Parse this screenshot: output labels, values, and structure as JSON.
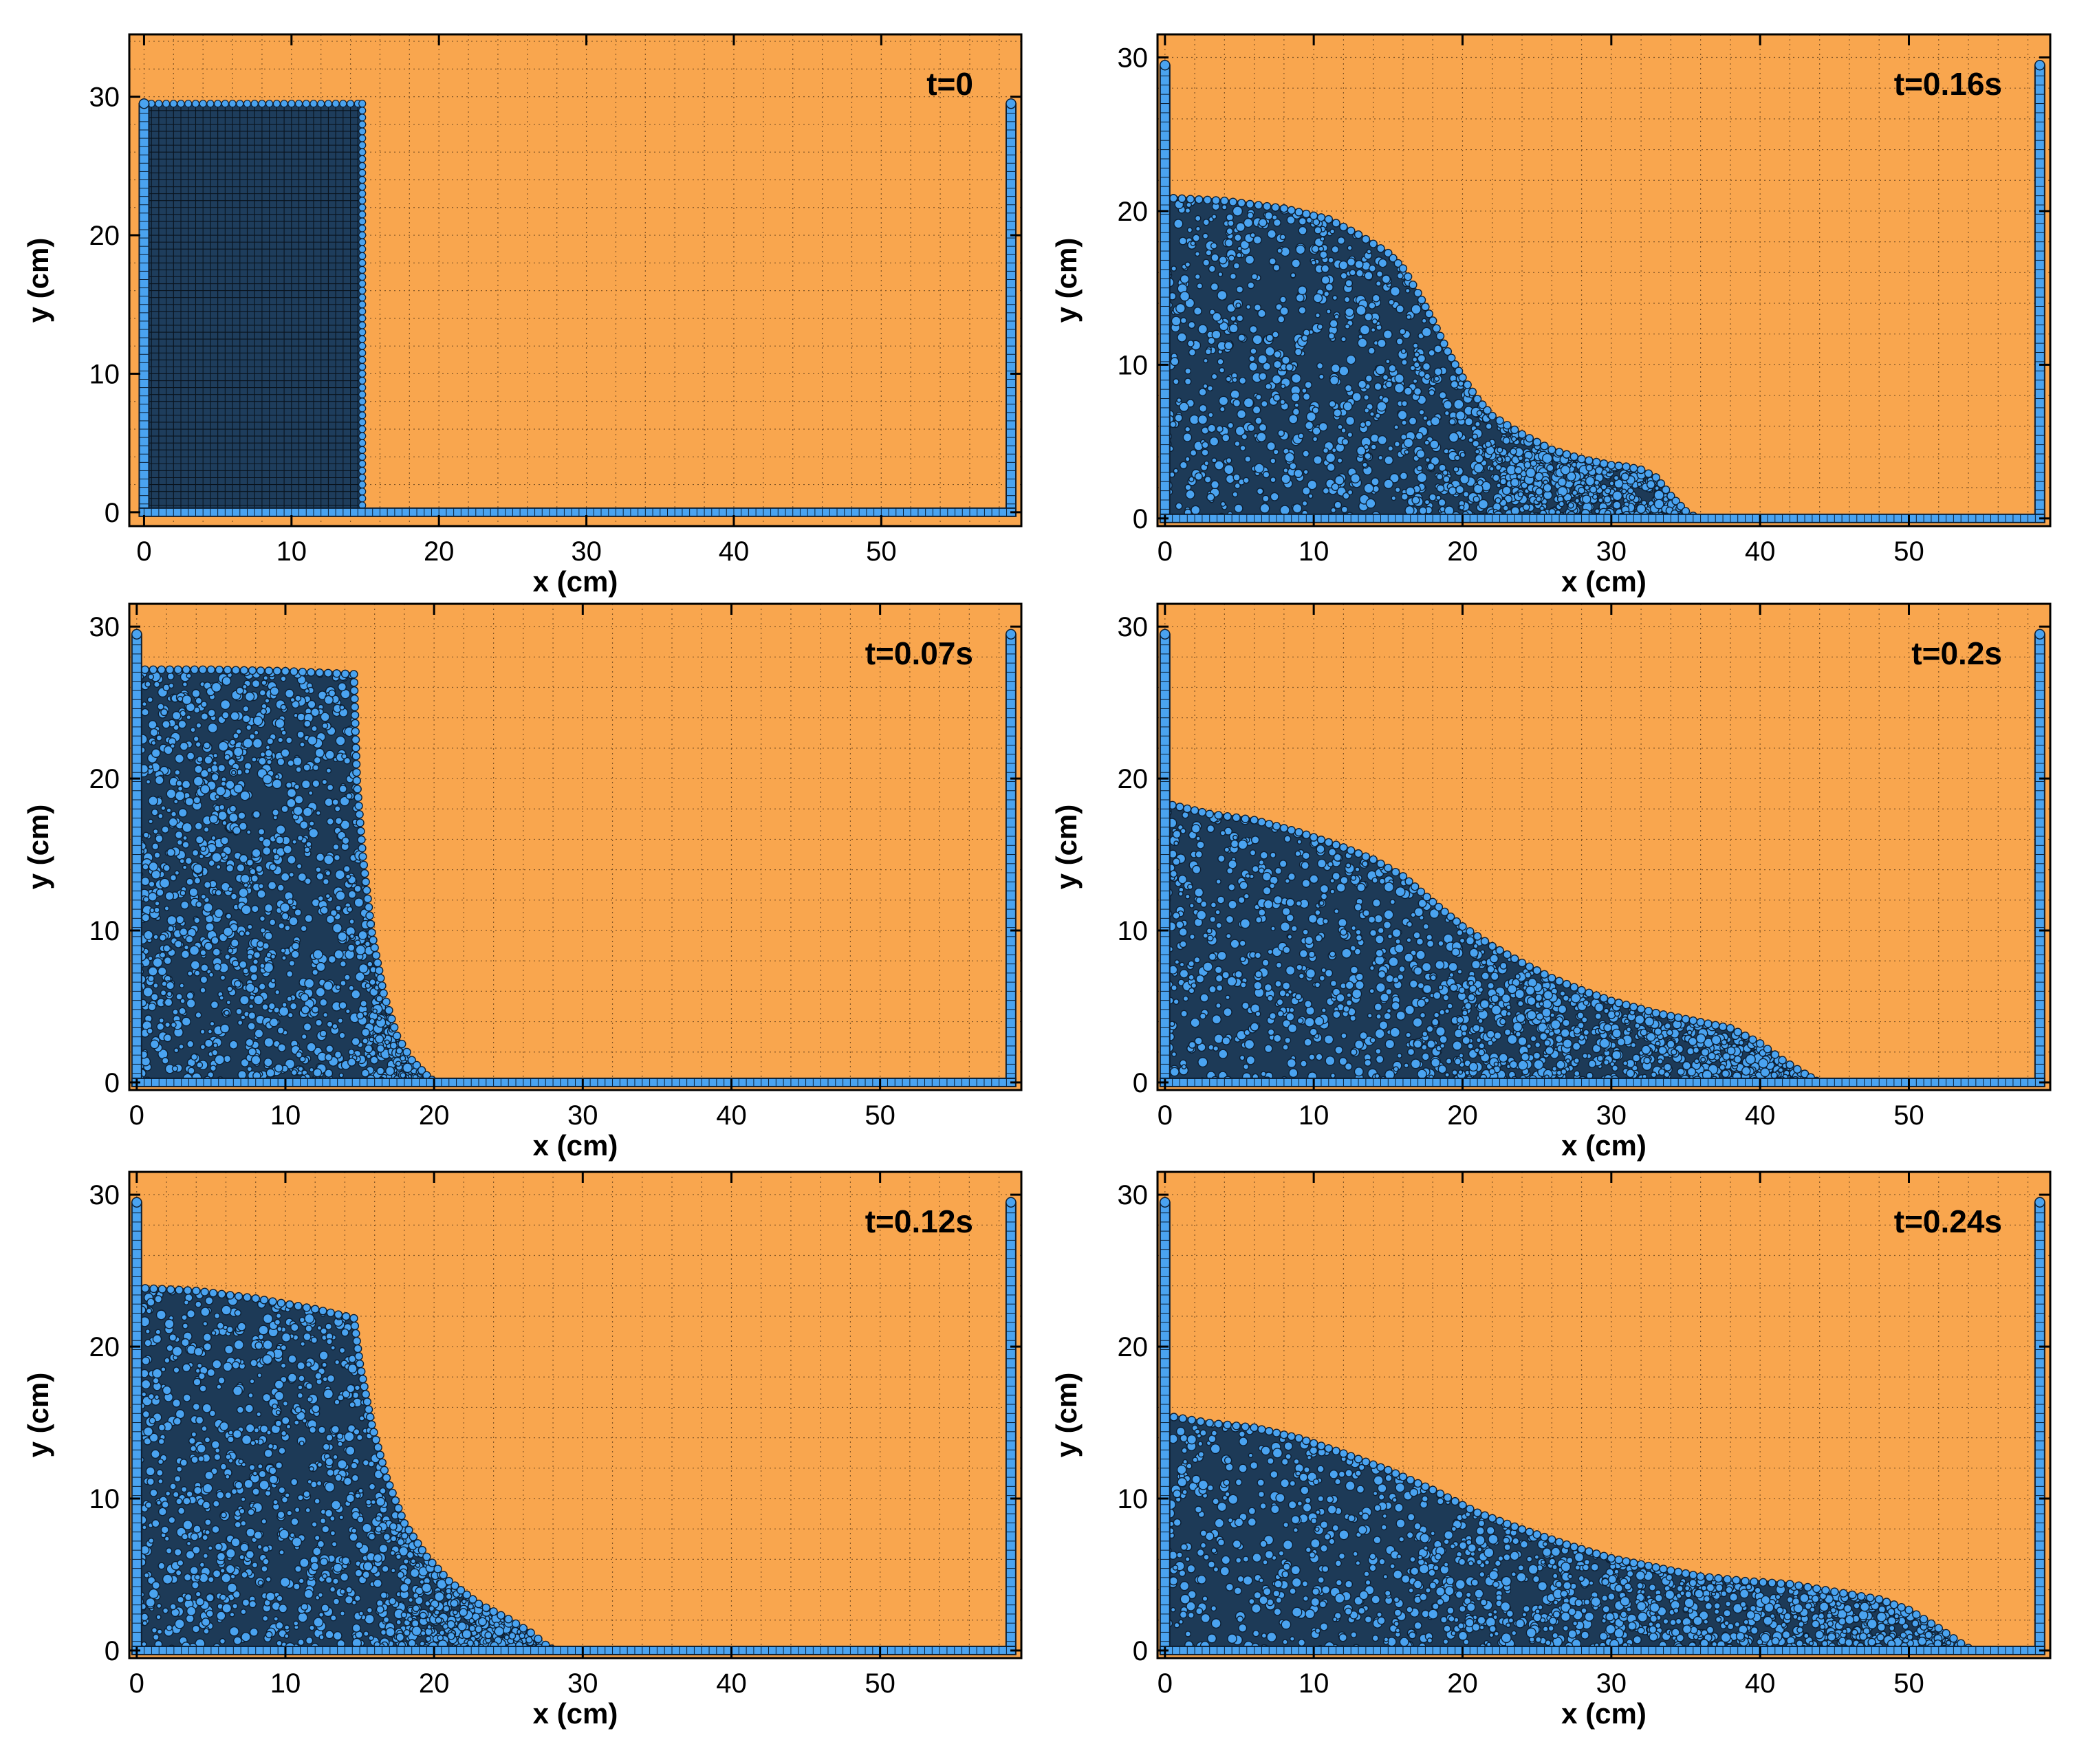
{
  "figure": {
    "colors": {
      "background": "#f9a64e",
      "particle_fill": "#4aa3f0",
      "particle_edge": "#0d1f33",
      "grid": "#5a3a1a",
      "frame": "#000000"
    }
  },
  "chart_data": [
    {
      "type": "scatter",
      "title": "t=0",
      "xlabel": "x (cm)",
      "ylabel": "y (cm)",
      "xlim": [
        -1,
        59.5
      ],
      "ylim": [
        -1,
        34.5
      ],
      "xticks": [
        0,
        10,
        20,
        30,
        40,
        50
      ],
      "yticks": [
        0,
        10,
        20,
        30
      ],
      "left_wall": {
        "x": 0,
        "height": 29.5
      },
      "right_wall": {
        "x": 58.8,
        "height": 29.5
      },
      "floor": {
        "y": 0
      },
      "granular_column": {
        "x": 0,
        "width": 14.8,
        "height": 29.5
      },
      "free_surface": [
        [
          0,
          29.5
        ],
        [
          14.8,
          29.5
        ],
        [
          14.8,
          0
        ]
      ]
    },
    {
      "type": "scatter",
      "title": "t=0.16s",
      "xlabel": "x (cm)",
      "ylabel": "y (cm)",
      "xlim": [
        -0.5,
        59.5
      ],
      "ylim": [
        -0.5,
        31.5
      ],
      "xticks": [
        0,
        10,
        20,
        30,
        40,
        50
      ],
      "yticks": [
        0,
        10,
        20,
        30
      ],
      "left_wall": {
        "x": 0,
        "height": 29.5
      },
      "right_wall": {
        "x": 58.8,
        "height": 29.5
      },
      "floor": {
        "y": 0
      },
      "free_surface": [
        [
          0,
          21
        ],
        [
          4,
          20.8
        ],
        [
          8,
          20.3
        ],
        [
          11,
          19.6
        ],
        [
          13,
          18.6
        ],
        [
          15,
          17.4
        ],
        [
          16,
          16.4
        ],
        [
          17,
          14.8
        ],
        [
          18,
          13
        ],
        [
          19,
          11
        ],
        [
          20,
          9.3
        ],
        [
          21,
          7.9
        ],
        [
          22,
          6.8
        ],
        [
          24,
          5.6
        ],
        [
          26,
          4.6
        ],
        [
          28,
          4
        ],
        [
          30,
          3.6
        ],
        [
          31,
          3.5
        ],
        [
          32,
          3.3
        ],
        [
          33,
          2.8
        ],
        [
          34,
          1.6
        ],
        [
          35,
          0.6
        ],
        [
          36,
          0
        ]
      ]
    },
    {
      "type": "scatter",
      "title": "t=0.07s",
      "xlabel": "x (cm)",
      "ylabel": "y (cm)",
      "xlim": [
        -0.5,
        59.5
      ],
      "ylim": [
        -0.5,
        31.5
      ],
      "xticks": [
        0,
        10,
        20,
        30,
        40,
        50
      ],
      "yticks": [
        0,
        10,
        20,
        30
      ],
      "left_wall": {
        "x": 0,
        "height": 29.5
      },
      "right_wall": {
        "x": 58.8,
        "height": 29.5
      },
      "floor": {
        "y": 0
      },
      "free_surface": [
        [
          0,
          27.3
        ],
        [
          5,
          27.3
        ],
        [
          10,
          27.2
        ],
        [
          14.6,
          27
        ],
        [
          14.8,
          20
        ],
        [
          15.2,
          15
        ],
        [
          15.8,
          10
        ],
        [
          16.6,
          6
        ],
        [
          17.5,
          3.2
        ],
        [
          18.5,
          1.6
        ],
        [
          19.5,
          0.6
        ],
        [
          20.2,
          0
        ]
      ]
    },
    {
      "type": "scatter",
      "title": "t=0.2s",
      "xlabel": "x (cm)",
      "ylabel": "y (cm)",
      "xlim": [
        -0.5,
        59.5
      ],
      "ylim": [
        -0.5,
        31.5
      ],
      "xticks": [
        0,
        10,
        20,
        30,
        40,
        50
      ],
      "yticks": [
        0,
        10,
        20,
        30
      ],
      "left_wall": {
        "x": 0,
        "height": 29.5
      },
      "right_wall": {
        "x": 58.8,
        "height": 29.5
      },
      "floor": {
        "y": 0
      },
      "free_surface": [
        [
          0,
          18.5
        ],
        [
          3,
          17.8
        ],
        [
          6,
          17.4
        ],
        [
          9,
          16.6
        ],
        [
          12,
          15.6
        ],
        [
          14,
          14.8
        ],
        [
          16,
          13.7
        ],
        [
          18,
          12
        ],
        [
          20,
          10.4
        ],
        [
          22,
          9.1
        ],
        [
          24,
          8
        ],
        [
          26,
          7
        ],
        [
          28,
          6.2
        ],
        [
          30,
          5.5
        ],
        [
          33,
          4.7
        ],
        [
          36,
          4.1
        ],
        [
          38,
          3.7
        ],
        [
          40,
          2.7
        ],
        [
          41.5,
          1.6
        ],
        [
          43,
          0.7
        ],
        [
          44.2,
          0
        ]
      ]
    },
    {
      "type": "scatter",
      "title": "t=0.12s",
      "xlabel": "x (cm)",
      "ylabel": "y (cm)",
      "xlim": [
        -0.5,
        59.5
      ],
      "ylim": [
        -0.5,
        31.5
      ],
      "xticks": [
        0,
        10,
        20,
        30,
        40,
        50
      ],
      "yticks": [
        0,
        10,
        20,
        30
      ],
      "left_wall": {
        "x": 0,
        "height": 29.5
      },
      "right_wall": {
        "x": 58.8,
        "height": 29.5
      },
      "floor": {
        "y": 0
      },
      "free_surface": [
        [
          0,
          24
        ],
        [
          4,
          23.8
        ],
        [
          8,
          23.3
        ],
        [
          12,
          22.6
        ],
        [
          14.6,
          22
        ],
        [
          15,
          19
        ],
        [
          15.8,
          15
        ],
        [
          16.8,
          11.5
        ],
        [
          18,
          8.5
        ],
        [
          19.5,
          6.3
        ],
        [
          21,
          4.7
        ],
        [
          23,
          3.2
        ],
        [
          25,
          2.2
        ],
        [
          26.5,
          1.3
        ],
        [
          27.5,
          0.5
        ],
        [
          28.3,
          0
        ]
      ]
    },
    {
      "type": "scatter",
      "title": "t=0.24s",
      "xlabel": "x (cm)",
      "ylabel": "y (cm)",
      "xlim": [
        -0.5,
        59.5
      ],
      "ylim": [
        -0.5,
        31.5
      ],
      "xticks": [
        0,
        10,
        20,
        30,
        40,
        50
      ],
      "yticks": [
        0,
        10,
        20,
        30
      ],
      "left_wall": {
        "x": 0,
        "height": 29.5
      },
      "right_wall": {
        "x": 58.8,
        "height": 29.5
      },
      "floor": {
        "y": 0
      },
      "free_surface": [
        [
          0,
          15.6
        ],
        [
          3,
          15.1
        ],
        [
          6,
          14.8
        ],
        [
          9,
          14.1
        ],
        [
          12,
          13.1
        ],
        [
          15,
          12
        ],
        [
          18,
          10.7
        ],
        [
          21,
          9.2
        ],
        [
          24,
          8.1
        ],
        [
          27,
          7.1
        ],
        [
          30,
          6.2
        ],
        [
          33,
          5.6
        ],
        [
          36,
          5
        ],
        [
          39,
          4.7
        ],
        [
          42,
          4.5
        ],
        [
          45,
          4
        ],
        [
          48,
          3.5
        ],
        [
          50,
          2.8
        ],
        [
          52,
          1.6
        ],
        [
          53.5,
          0.6
        ],
        [
          54.5,
          0
        ]
      ]
    }
  ]
}
